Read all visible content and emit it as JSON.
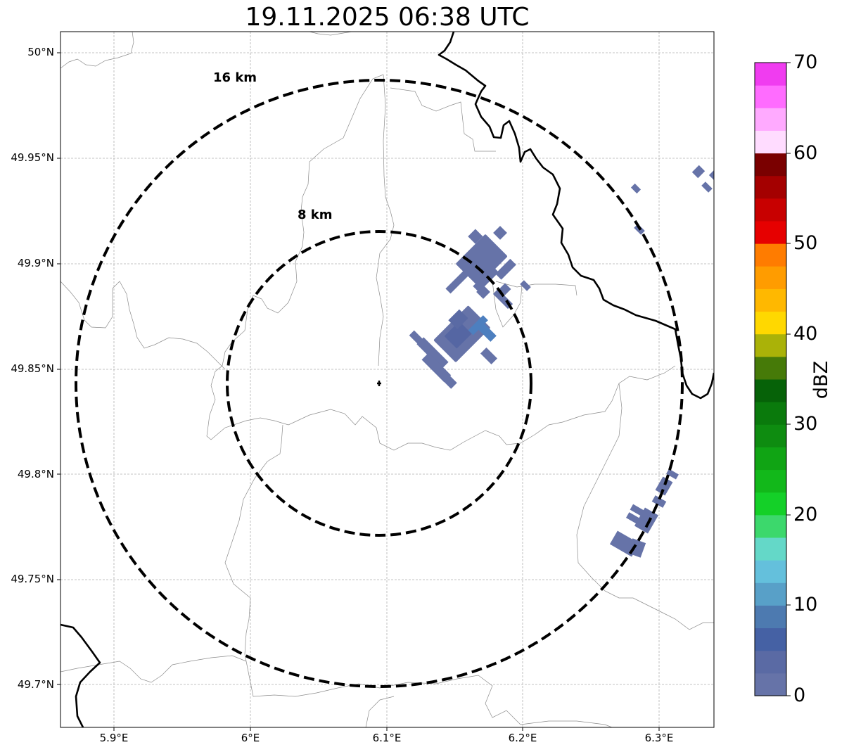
{
  "title": "19.11.2025 06:38 UTC",
  "colors": {
    "coastline": "#000000",
    "borders": "#8c8c8c",
    "grid": "#b0b0b0",
    "echo_base": "#6a7aaa",
    "echo_dark": "#5566a3",
    "echo_mid": "#4d7fbf"
  },
  "map": {
    "lon_ticks": [
      "5.9°E",
      "6°E",
      "6.1°E",
      "6.2°E",
      "6.3°E"
    ],
    "lat_ticks": [
      "50°N",
      "49.95°N",
      "49.9°N",
      "49.85°N",
      "49.8°N",
      "49.75°N",
      "49.7°N"
    ],
    "extent": {
      "lon_min": 5.86,
      "lon_max": 6.34,
      "lat_min": 49.68,
      "lat_max": 50.01
    },
    "center": {
      "lon": 6.095,
      "lat": 49.843
    },
    "range_rings": [
      {
        "label": "8 km",
        "radius_km": 8
      },
      {
        "label": "16 km",
        "radius_km": 16
      }
    ]
  },
  "colorbar": {
    "label": "dBZ",
    "ticks": [
      "0",
      "10",
      "20",
      "30",
      "40",
      "50",
      "60",
      "70"
    ],
    "min": 0,
    "max": 70,
    "step": 2.5,
    "colors": [
      "#6673a8",
      "#5a6aa4",
      "#4561a4",
      "#4d7ab0",
      "#58a0c8",
      "#64c0dc",
      "#64d8c8",
      "#3cd86c",
      "#14d028",
      "#12b81a",
      "#10a414",
      "#0e8c10",
      "#0a7a0c",
      "#066208",
      "#467a08",
      "#aab208",
      "#ffd800",
      "#ffb800",
      "#ff9c00",
      "#ff7c00",
      "#e60000",
      "#c80000",
      "#a40000",
      "#7a0000",
      "#ffdcff",
      "#ffaaff",
      "#ff6cff",
      "#f03cf0"
    ]
  }
}
